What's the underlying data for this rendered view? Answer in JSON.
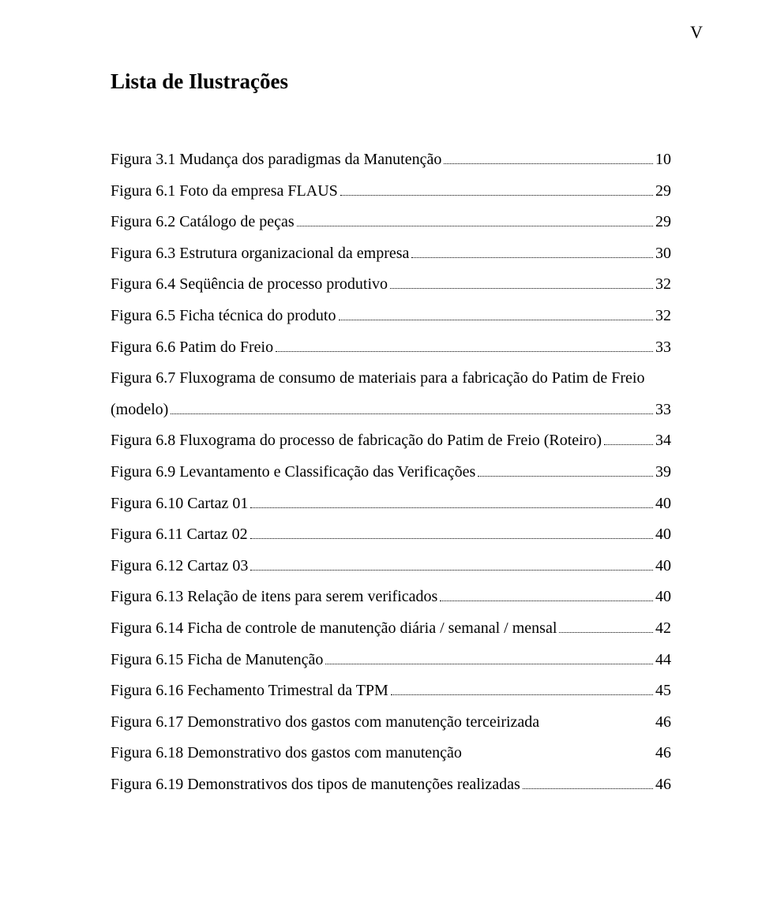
{
  "page_mark": "V",
  "title": "Lista de Ilustrações",
  "entries": [
    {
      "label": "Figura 3.1 Mudança dos paradigmas da Manutenção",
      "page": "10"
    },
    {
      "label": "Figura 6.1 Foto da empresa FLAUS",
      "page": "29"
    },
    {
      "label": "Figura 6.2 Catálogo de peças",
      "page": "29"
    },
    {
      "label": "Figura 6.3 Estrutura organizacional da empresa",
      "page": "30"
    },
    {
      "label": "Figura 6.4 Seqüência de processo produtivo",
      "page": "32"
    },
    {
      "label": "Figura 6.5 Ficha técnica do produto",
      "page": "32"
    },
    {
      "label": "Figura 6.6 Patim do Freio",
      "page": "33"
    },
    {
      "label_line1": "Figura 6.7 Fluxograma de consumo de materiais para a fabricação do Patim de Freio",
      "label_line2": "(modelo)",
      "page": "33",
      "wrap": true
    },
    {
      "label": "Figura 6.8 Fluxograma do processo de fabricação do Patim de Freio (Roteiro)",
      "page": "34"
    },
    {
      "label": "Figura 6.9 Levantamento e Classificação das Verificações",
      "page": "39"
    },
    {
      "label": "Figura 6.10 Cartaz 01",
      "page": "40"
    },
    {
      "label": "Figura 6.11 Cartaz 02",
      "page": "40"
    },
    {
      "label": "Figura 6.12 Cartaz 03",
      "page": "40"
    },
    {
      "label": "Figura 6.13 Relação de itens para serem verificados",
      "page": "40"
    },
    {
      "label": "Figura 6.14 Ficha de controle de manutenção diária / semanal / mensal",
      "page": "42"
    },
    {
      "label": "Figura 6.15 Ficha de Manutenção",
      "page": "44"
    },
    {
      "label": "Figura 6.16 Fechamento Trimestral da TPM",
      "page": "45"
    },
    {
      "label": "Figura 6.17 Demonstrativo dos gastos com manutenção terceirizada",
      "page": "46",
      "gap": true
    },
    {
      "label": "Figura 6.18 Demonstrativo dos gastos com manutenção",
      "page": "46",
      "gap": true
    },
    {
      "label": "Figura 6.19 Demonstrativos dos tipos de manutenções realizadas",
      "page": "46"
    }
  ]
}
